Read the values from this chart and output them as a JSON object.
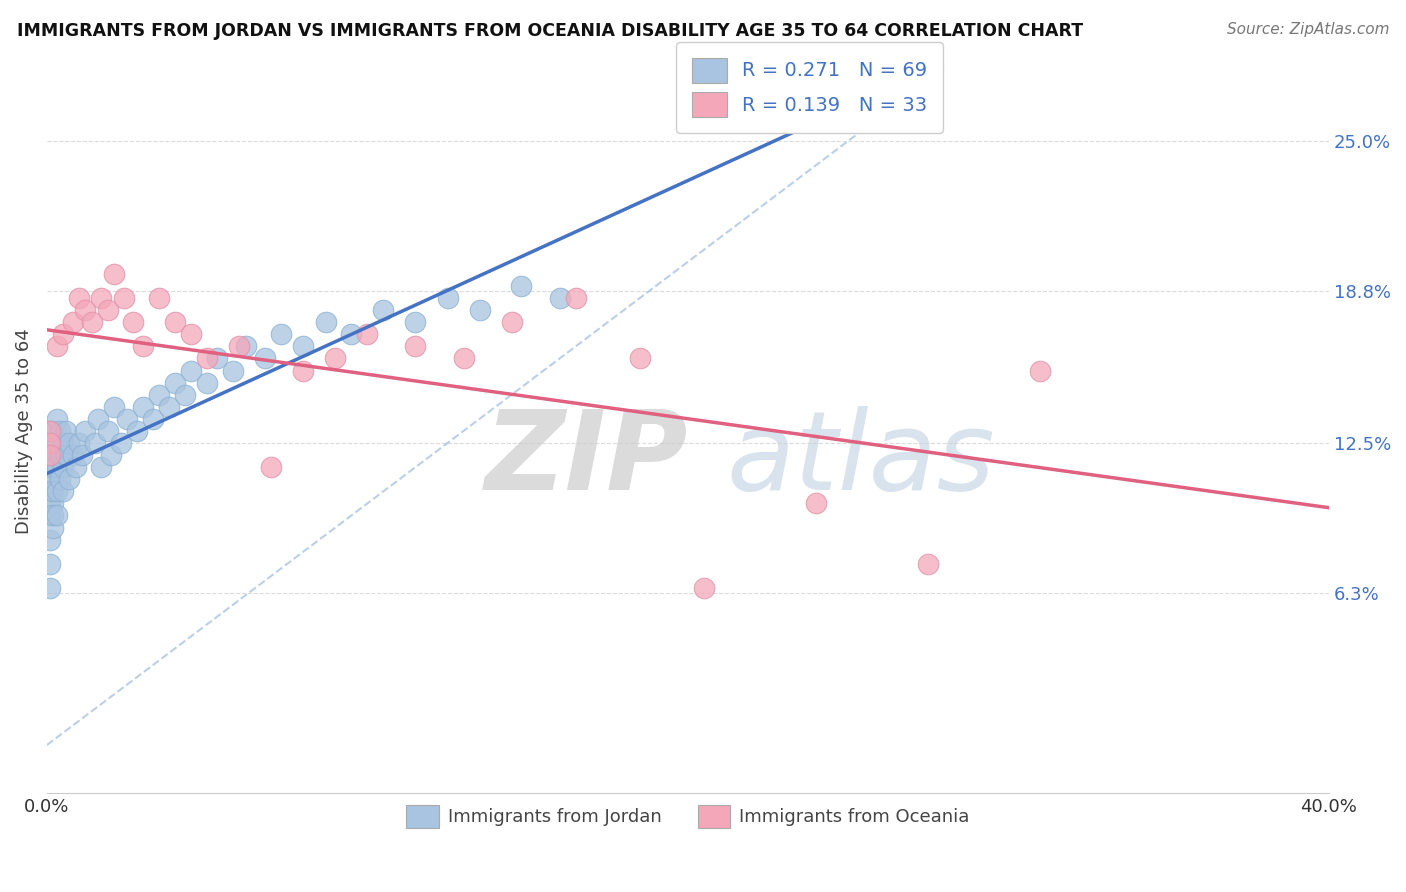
{
  "title": "IMMIGRANTS FROM JORDAN VS IMMIGRANTS FROM OCEANIA DISABILITY AGE 35 TO 64 CORRELATION CHART",
  "source_text": "Source: ZipAtlas.com",
  "ylabel": "Disability Age 35 to 64",
  "xlim": [
    0.0,
    0.4
  ],
  "ylim": [
    -0.02,
    0.28
  ],
  "x_ticks": [
    0.0,
    0.1,
    0.2,
    0.3,
    0.4
  ],
  "x_tick_labels": [
    "0.0%",
    "",
    "",
    "",
    "40.0%"
  ],
  "y_tick_labels_right": [
    "6.3%",
    "12.5%",
    "18.8%",
    "25.0%"
  ],
  "y_ticks_right": [
    0.063,
    0.125,
    0.188,
    0.25
  ],
  "color_jordan": "#a8c4e0",
  "color_oceania": "#f4a7b9",
  "color_jordan_line": "#4472c4",
  "color_oceania_line": "#e06080",
  "legend_text1": "Immigrants from Jordan",
  "legend_text2": "Immigrants from Oceania",
  "jordan_x": [
    0.001,
    0.001,
    0.001,
    0.001,
    0.001,
    0.001,
    0.001,
    0.001,
    0.001,
    0.001,
    0.002,
    0.002,
    0.002,
    0.002,
    0.002,
    0.002,
    0.002,
    0.002,
    0.003,
    0.003,
    0.003,
    0.003,
    0.003,
    0.004,
    0.004,
    0.004,
    0.005,
    0.005,
    0.005,
    0.006,
    0.006,
    0.007,
    0.007,
    0.008,
    0.009,
    0.01,
    0.011,
    0.012,
    0.015,
    0.016,
    0.017,
    0.019,
    0.02,
    0.021,
    0.023,
    0.025,
    0.028,
    0.03,
    0.033,
    0.035,
    0.038,
    0.04,
    0.043,
    0.045,
    0.05,
    0.053,
    0.058,
    0.062,
    0.068,
    0.073,
    0.08,
    0.087,
    0.095,
    0.105,
    0.115,
    0.125,
    0.135,
    0.148,
    0.16
  ],
  "jordan_y": [
    0.1,
    0.11,
    0.12,
    0.13,
    0.105,
    0.095,
    0.085,
    0.115,
    0.075,
    0.065,
    0.12,
    0.11,
    0.1,
    0.13,
    0.115,
    0.09,
    0.105,
    0.095,
    0.125,
    0.115,
    0.105,
    0.095,
    0.135,
    0.12,
    0.11,
    0.13,
    0.125,
    0.115,
    0.105,
    0.12,
    0.13,
    0.11,
    0.125,
    0.12,
    0.115,
    0.125,
    0.12,
    0.13,
    0.125,
    0.135,
    0.115,
    0.13,
    0.12,
    0.14,
    0.125,
    0.135,
    0.13,
    0.14,
    0.135,
    0.145,
    0.14,
    0.15,
    0.145,
    0.155,
    0.15,
    0.16,
    0.155,
    0.165,
    0.16,
    0.17,
    0.165,
    0.175,
    0.17,
    0.18,
    0.175,
    0.185,
    0.18,
    0.19,
    0.185
  ],
  "oceania_x": [
    0.001,
    0.001,
    0.001,
    0.003,
    0.005,
    0.008,
    0.01,
    0.012,
    0.014,
    0.017,
    0.019,
    0.021,
    0.024,
    0.027,
    0.03,
    0.035,
    0.04,
    0.045,
    0.05,
    0.06,
    0.07,
    0.08,
    0.09,
    0.1,
    0.115,
    0.13,
    0.145,
    0.165,
    0.185,
    0.205,
    0.24,
    0.275,
    0.31
  ],
  "oceania_y": [
    0.13,
    0.125,
    0.12,
    0.165,
    0.17,
    0.175,
    0.185,
    0.18,
    0.175,
    0.185,
    0.18,
    0.195,
    0.185,
    0.175,
    0.165,
    0.185,
    0.175,
    0.17,
    0.16,
    0.165,
    0.115,
    0.155,
    0.16,
    0.17,
    0.165,
    0.16,
    0.175,
    0.185,
    0.16,
    0.065,
    0.1,
    0.075,
    0.155
  ],
  "background_color": "#ffffff",
  "grid_color": "#cccccc"
}
